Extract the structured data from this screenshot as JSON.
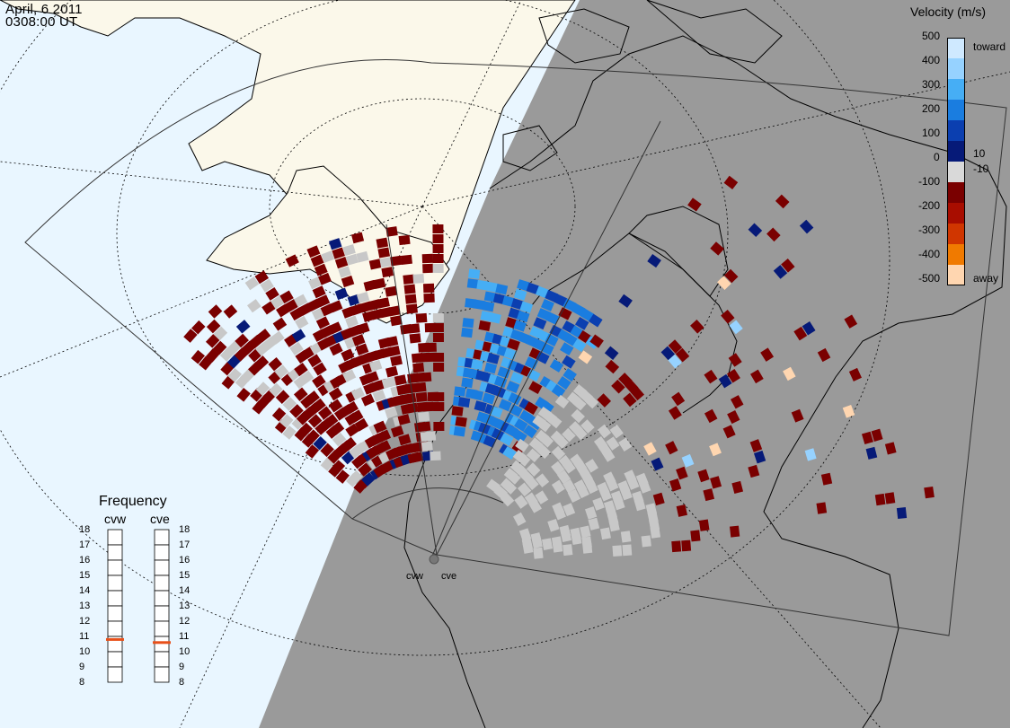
{
  "header": {
    "date": "April, 6 2011",
    "time": "0308:00 UT"
  },
  "colorbar": {
    "title": "Velocity (m/s)",
    "toward_label": "toward",
    "away_label": "away",
    "positive_ticks": [
      "500",
      "400",
      "300",
      "200",
      "100"
    ],
    "small_pos": "10",
    "zero": "0",
    "small_neg": "-10",
    "negative_ticks": [
      "-100",
      "-200",
      "-300",
      "-400",
      "-500"
    ],
    "colors": [
      "#cfe9ff",
      "#96d2ff",
      "#46aef5",
      "#1a7de0",
      "#0b3fb0",
      "#061a78",
      "#d9d9d9",
      "#7a0000",
      "#a80d00",
      "#d03600",
      "#f07a00",
      "#ffd6b0"
    ]
  },
  "frequency": {
    "title": "Frequency",
    "radars": [
      {
        "name": "cvw",
        "value": 10.8
      },
      {
        "name": "cve",
        "value": 10.6
      }
    ],
    "ticks": [
      "18",
      "17",
      "16",
      "15",
      "14",
      "13",
      "12",
      "11",
      "10",
      "9",
      "8"
    ],
    "range": [
      8,
      18
    ],
    "marker_color": "#e8501a"
  },
  "sites": [
    "cvw",
    "cve"
  ],
  "map_colors": {
    "day_ocean": "#e9f6ff",
    "day_land": "#fbf8ea",
    "night": "#9a9a9a",
    "ground_scatter": "#c8c8c8"
  }
}
